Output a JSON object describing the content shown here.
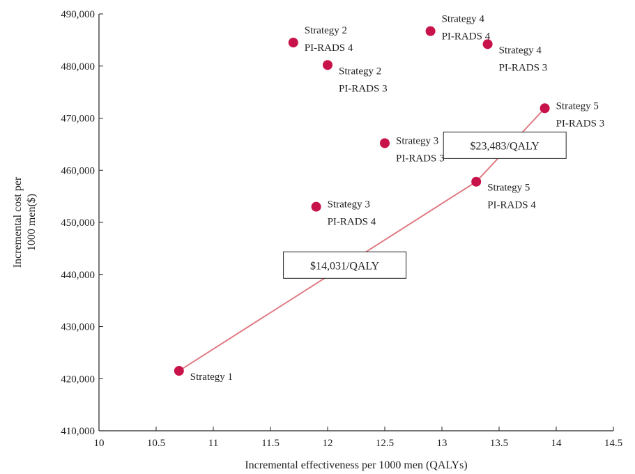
{
  "chart_data": {
    "type": "scatter",
    "xlabel": "Incremental effectiveness per 1000 men  (QALYs)",
    "ylabel_lines": [
      "Incremental cost per",
      "1000 men($)"
    ],
    "xlim": [
      10,
      14.5
    ],
    "ylim": [
      410000,
      490000
    ],
    "x_ticks": [
      10,
      10.5,
      11,
      11.5,
      12,
      12.5,
      13,
      13.5,
      14,
      14.5
    ],
    "x_tick_labels": [
      "10",
      "10.5",
      "11",
      "11.5",
      "12",
      "12.5",
      "13",
      "13.5",
      "14",
      "14.5"
    ],
    "y_ticks": [
      410000,
      420000,
      430000,
      440000,
      450000,
      460000,
      470000,
      480000,
      490000
    ],
    "y_tick_labels": [
      "410,000",
      "420,000",
      "430,000",
      "440,000",
      "450,000",
      "460,000",
      "470,000",
      "480,000",
      "490,000"
    ],
    "grid": false,
    "marker_color": "#c8124a",
    "line_color": "#e07a83",
    "points": [
      {
        "x": 10.7,
        "y": 421500,
        "label": [
          "Strategy 1"
        ],
        "label_pos": "right-below"
      },
      {
        "x": 11.7,
        "y": 484500,
        "label": [
          "Strategy 2",
          "PI-RADS 4"
        ],
        "label_pos": "right-above"
      },
      {
        "x": 12.0,
        "y": 480200,
        "label": [
          "Strategy 2",
          "PI-RADS 3"
        ],
        "label_pos": "right-below"
      },
      {
        "x": 12.5,
        "y": 465200,
        "label": [
          "Strategy 3",
          "PI-RADS 3"
        ],
        "label_pos": "right-mid"
      },
      {
        "x": 11.9,
        "y": 453000,
        "label": [
          "Strategy 3",
          "PI-RADS 4"
        ],
        "label_pos": "right-mid"
      },
      {
        "x": 12.9,
        "y": 486700,
        "label": [
          "Strategy 4",
          "PI-RADS 4"
        ],
        "label_pos": "right-above"
      },
      {
        "x": 13.4,
        "y": 484200,
        "label": [
          "Strategy 4",
          "PI-RADS 3"
        ],
        "label_pos": "right-below"
      },
      {
        "x": 13.9,
        "y": 471900,
        "label": [
          "Strategy 5",
          "PI-RADS 3"
        ],
        "label_pos": "right-mid"
      },
      {
        "x": 13.3,
        "y": 457800,
        "label": [
          "Strategy 5",
          "PI-RADS 4"
        ],
        "label_pos": "right-below"
      }
    ],
    "frontier": [
      {
        "x": 10.7,
        "y": 421500
      },
      {
        "x": 13.3,
        "y": 457800
      },
      {
        "x": 13.9,
        "y": 471900
      }
    ],
    "icer_labels": [
      {
        "text": "$14,031/QALY",
        "x": 12.15,
        "y": 441800
      },
      {
        "text": "$23,483/QALY",
        "x": 13.55,
        "y": 464800
      }
    ]
  }
}
